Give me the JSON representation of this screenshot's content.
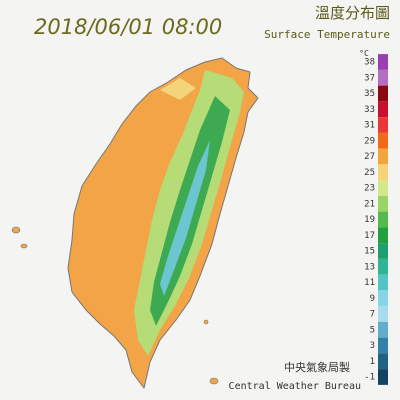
{
  "header": {
    "timestamp": "2018/06/01 08:00",
    "title_zh": "溫度分布圖",
    "title_en": "Surface Temperature"
  },
  "legend": {
    "unit": "°C",
    "entries": [
      {
        "value": 38,
        "color": "#9a3fb0"
      },
      {
        "value": 37,
        "color": "#b46fc4"
      },
      {
        "value": 35,
        "color": "#8a0a14"
      },
      {
        "value": 33,
        "color": "#c8102e"
      },
      {
        "value": 31,
        "color": "#e8383a"
      },
      {
        "value": 29,
        "color": "#f06a1a"
      },
      {
        "value": 27,
        "color": "#f3a43a"
      },
      {
        "value": 25,
        "color": "#f4d47a"
      },
      {
        "value": 23,
        "color": "#d4e88a"
      },
      {
        "value": 21,
        "color": "#98d466"
      },
      {
        "value": 19,
        "color": "#55ba4e"
      },
      {
        "value": 17,
        "color": "#22a040"
      },
      {
        "value": 15,
        "color": "#1f9e70"
      },
      {
        "value": 13,
        "color": "#2fb494"
      },
      {
        "value": 11,
        "color": "#55c4c4"
      },
      {
        "value": 9,
        "color": "#88d4e6"
      },
      {
        "value": 7,
        "color": "#a8dcec"
      },
      {
        "value": 5,
        "color": "#64aacb"
      },
      {
        "value": 3,
        "color": "#3482aa"
      },
      {
        "value": 1,
        "color": "#226384"
      },
      {
        "value": -1,
        "color": "#134262"
      }
    ]
  },
  "footer": {
    "agency_zh": "中央氣象局製",
    "agency_en": "Central Weather Bureau"
  }
}
